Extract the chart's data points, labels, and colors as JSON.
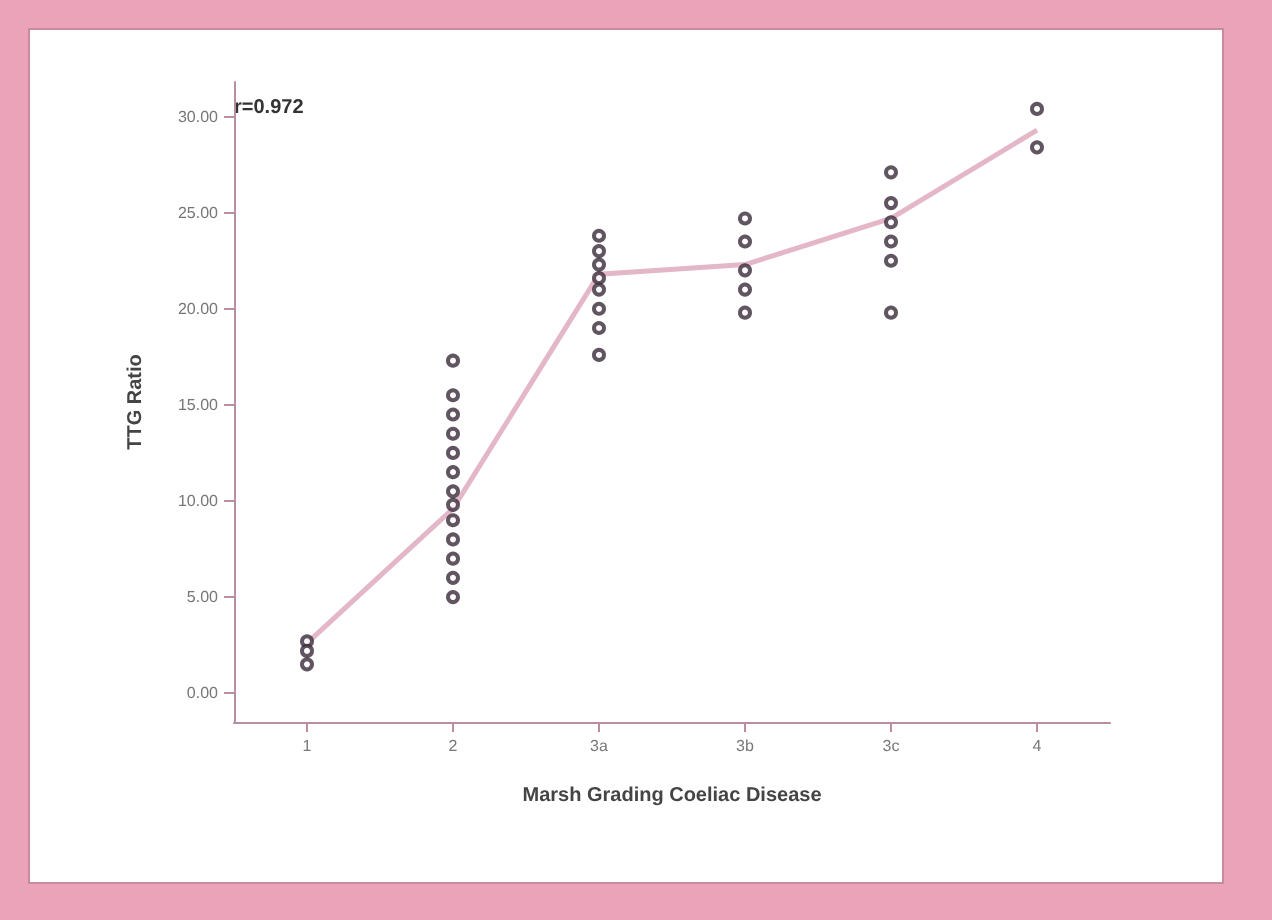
{
  "chart_data": {
    "type": "line",
    "xlabel": "Marsh Grading Coeliac Disease",
    "ylabel": "TTG Ratio",
    "annotations": [
      "r=0.972"
    ],
    "categories": [
      "1",
      "2",
      "3a",
      "3b",
      "3c",
      "4"
    ],
    "series": [
      {
        "color": "#e3b6c8",
        "values": [
          2.6,
          9.6,
          21.8,
          22.3,
          24.7,
          29.3
        ],
        "marker": "none"
      },
      {
        "type": "scatter",
        "color": "#3a2a3a",
        "marker": "circle",
        "x": [
          "1",
          "1",
          "1",
          "2",
          "2",
          "2",
          "2",
          "2",
          "2",
          "2",
          "2",
          "2",
          "2",
          "2",
          "2",
          "2",
          "3a",
          "3a",
          "3a",
          "3a",
          "3a",
          "3a",
          "3a",
          "3a",
          "3b",
          "3b",
          "3b",
          "3b",
          "3b",
          "3c",
          "3c",
          "3c",
          "3c",
          "3c",
          "3c",
          "4",
          "4"
        ],
        "values": [
          2.7,
          2.2,
          1.5,
          17.3,
          15.5,
          14.5,
          13.5,
          12.5,
          11.5,
          10.5,
          9.8,
          9,
          8,
          7,
          6,
          5,
          23.8,
          23,
          22.3,
          21.6,
          21,
          20,
          19,
          17.6,
          24.7,
          23.5,
          22,
          21,
          19.8,
          27.1,
          25.5,
          24.5,
          23.5,
          22.5,
          19.8,
          30.4,
          28.4
        ]
      }
    ],
    "ylim": [
      -1.5,
      31.8
    ],
    "yticks": [
      {
        "value": 0,
        "label": "0.00"
      },
      {
        "value": 5,
        "label": "5.00"
      },
      {
        "value": 10,
        "label": "10.00"
      },
      {
        "value": 15,
        "label": "15.00"
      },
      {
        "value": 20,
        "label": "20.00"
      },
      {
        "value": 25,
        "label": "25.00"
      },
      {
        "value": 30,
        "label": "30.00"
      }
    ],
    "grid": false
  }
}
